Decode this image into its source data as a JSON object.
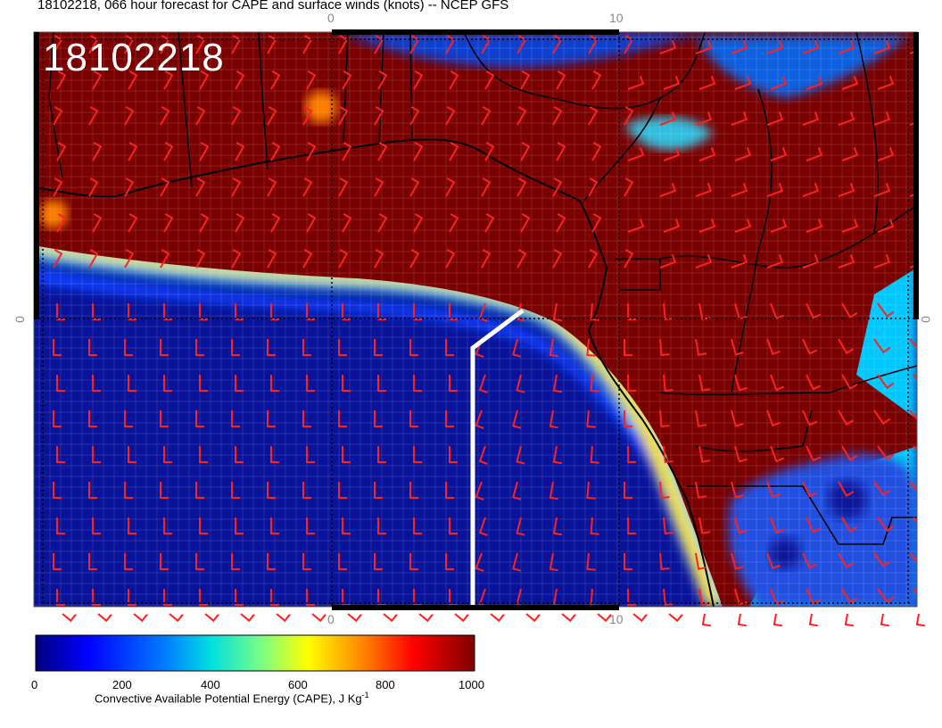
{
  "title": "18102218, 066 hour forecast for CAPE and surface winds (knots) -- NCEP GFS",
  "stamp": "18102218",
  "axis_labels": {
    "top": [
      "0",
      "10"
    ],
    "bottom": [
      "0",
      "10"
    ],
    "left": [
      "0"
    ],
    "right": [
      "0"
    ]
  },
  "colorbar": {
    "title": "Convective Available Potential Energy (CAPE), J Kg",
    "title_sup": "-1",
    "ticks": [
      "0",
      "200",
      "400",
      "600",
      "800",
      "1000"
    ],
    "range": [
      0,
      1000
    ],
    "colors": [
      "#00007f",
      "#0000ff",
      "#0080ff",
      "#00e0e0",
      "#80ff80",
      "#ffff00",
      "#ff8000",
      "#ff0000",
      "#7f0000"
    ]
  },
  "colors": {
    "ocean_low_cape": "#08139a",
    "land_high_cape": "#7a0000",
    "wind_barb": "#ff2020",
    "coastline": "#000000",
    "section_line": "#ffffff"
  }
}
